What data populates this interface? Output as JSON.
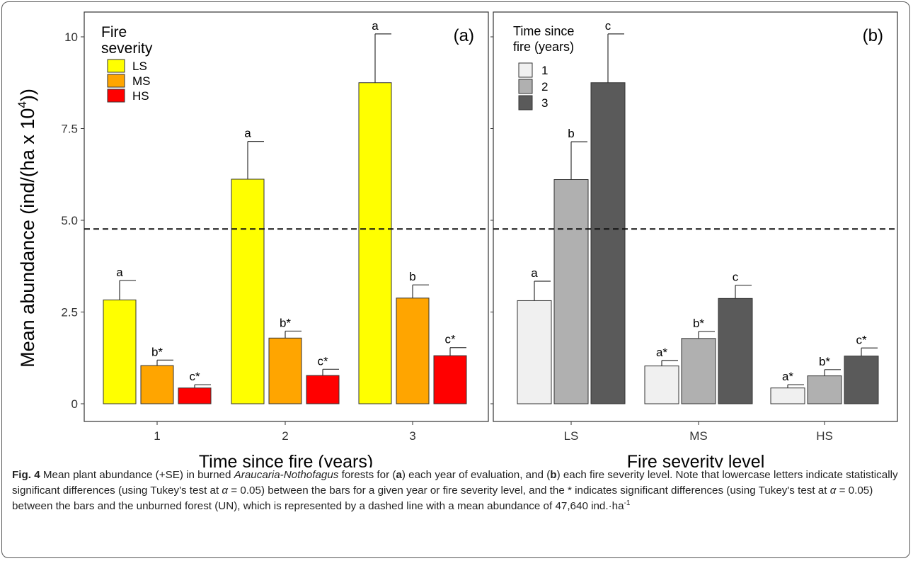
{
  "chart_data": [
    {
      "type": "bar",
      "panel_label": "(a)",
      "xlabel": "Time since fire (years)",
      "ylabel": "Mean abundance (ind/(ha x 10",
      "ylabel_sup": "4",
      "ylabel_end": "))",
      "ylim": [
        0,
        10.5
      ],
      "yticks": [
        "0",
        "2.5",
        "5.0",
        "7.5",
        "10"
      ],
      "categories": [
        "1",
        "2",
        "3"
      ],
      "legend": {
        "title_line1": "Fire",
        "title_line2": "severity",
        "placement": "top-left"
      },
      "series": [
        {
          "name": "LS",
          "color": "#ffff00",
          "values": [
            2.83,
            6.12,
            8.75
          ],
          "se": [
            0.53,
            1.03,
            1.33
          ],
          "letters": [
            "a",
            "a",
            "a"
          ]
        },
        {
          "name": "MS",
          "color": "#ffa500",
          "values": [
            1.04,
            1.79,
            2.88
          ],
          "se": [
            0.15,
            0.19,
            0.36
          ],
          "letters": [
            "b*",
            "b*",
            "b"
          ]
        },
        {
          "name": "HS",
          "color": "#ff0000",
          "values": [
            0.43,
            0.77,
            1.31
          ],
          "se": [
            0.09,
            0.17,
            0.22
          ],
          "letters": [
            "c*",
            "c*",
            "c*"
          ]
        }
      ],
      "reference_line": {
        "value": 4.764,
        "style": "dashed"
      },
      "grid": false
    },
    {
      "type": "bar",
      "panel_label": "(b)",
      "xlabel": "Fire severity level",
      "ylim": [
        0,
        10.5
      ],
      "categories": [
        "LS",
        "MS",
        "HS"
      ],
      "legend": {
        "title_line1": "Time since",
        "title_line2": "fire (years)",
        "placement": "top-left"
      },
      "series": [
        {
          "name": "1",
          "color": "#f0f0f0",
          "values": [
            2.81,
            1.03,
            0.43
          ],
          "se": [
            0.53,
            0.15,
            0.09
          ],
          "letters": [
            "a",
            "a*",
            "a*"
          ]
        },
        {
          "name": "2",
          "color": "#b0b0b0",
          "values": [
            6.11,
            1.78,
            0.76
          ],
          "se": [
            1.03,
            0.19,
            0.17
          ],
          "letters": [
            "b",
            "b*",
            "b*"
          ]
        },
        {
          "name": "3",
          "color": "#5a5a5a",
          "values": [
            8.75,
            2.87,
            1.3
          ],
          "se": [
            1.33,
            0.36,
            0.22
          ],
          "letters": [
            "c",
            "c",
            "c*"
          ]
        }
      ],
      "reference_line": {
        "value": 4.764,
        "style": "dashed"
      },
      "grid": false
    }
  ],
  "caption": {
    "fig_label": "Fig. 4",
    "t1": " Mean plant abundance (+SE) in burned ",
    "species": "Araucaria-Nothofagus",
    "t2": " forests for (",
    "a": "a",
    "t3": ") each year of evaluation, and (",
    "b": "b",
    "t4": ") each fire severity level. Note that lowercase letters indicate statistically significant differences (using Tukey's test at ",
    "alpha1": "α",
    "t5": " = 0.05) between the bars for a given year or fire severity level, and the * indicates significant differences (using Tukey's test at ",
    "alpha2": "α",
    "t6": " = 0.05) between the bars and the unburned forest (UN), which is represented by a dashed line with a mean abundance of 47,640 ind.·ha",
    "sup": "-1"
  }
}
